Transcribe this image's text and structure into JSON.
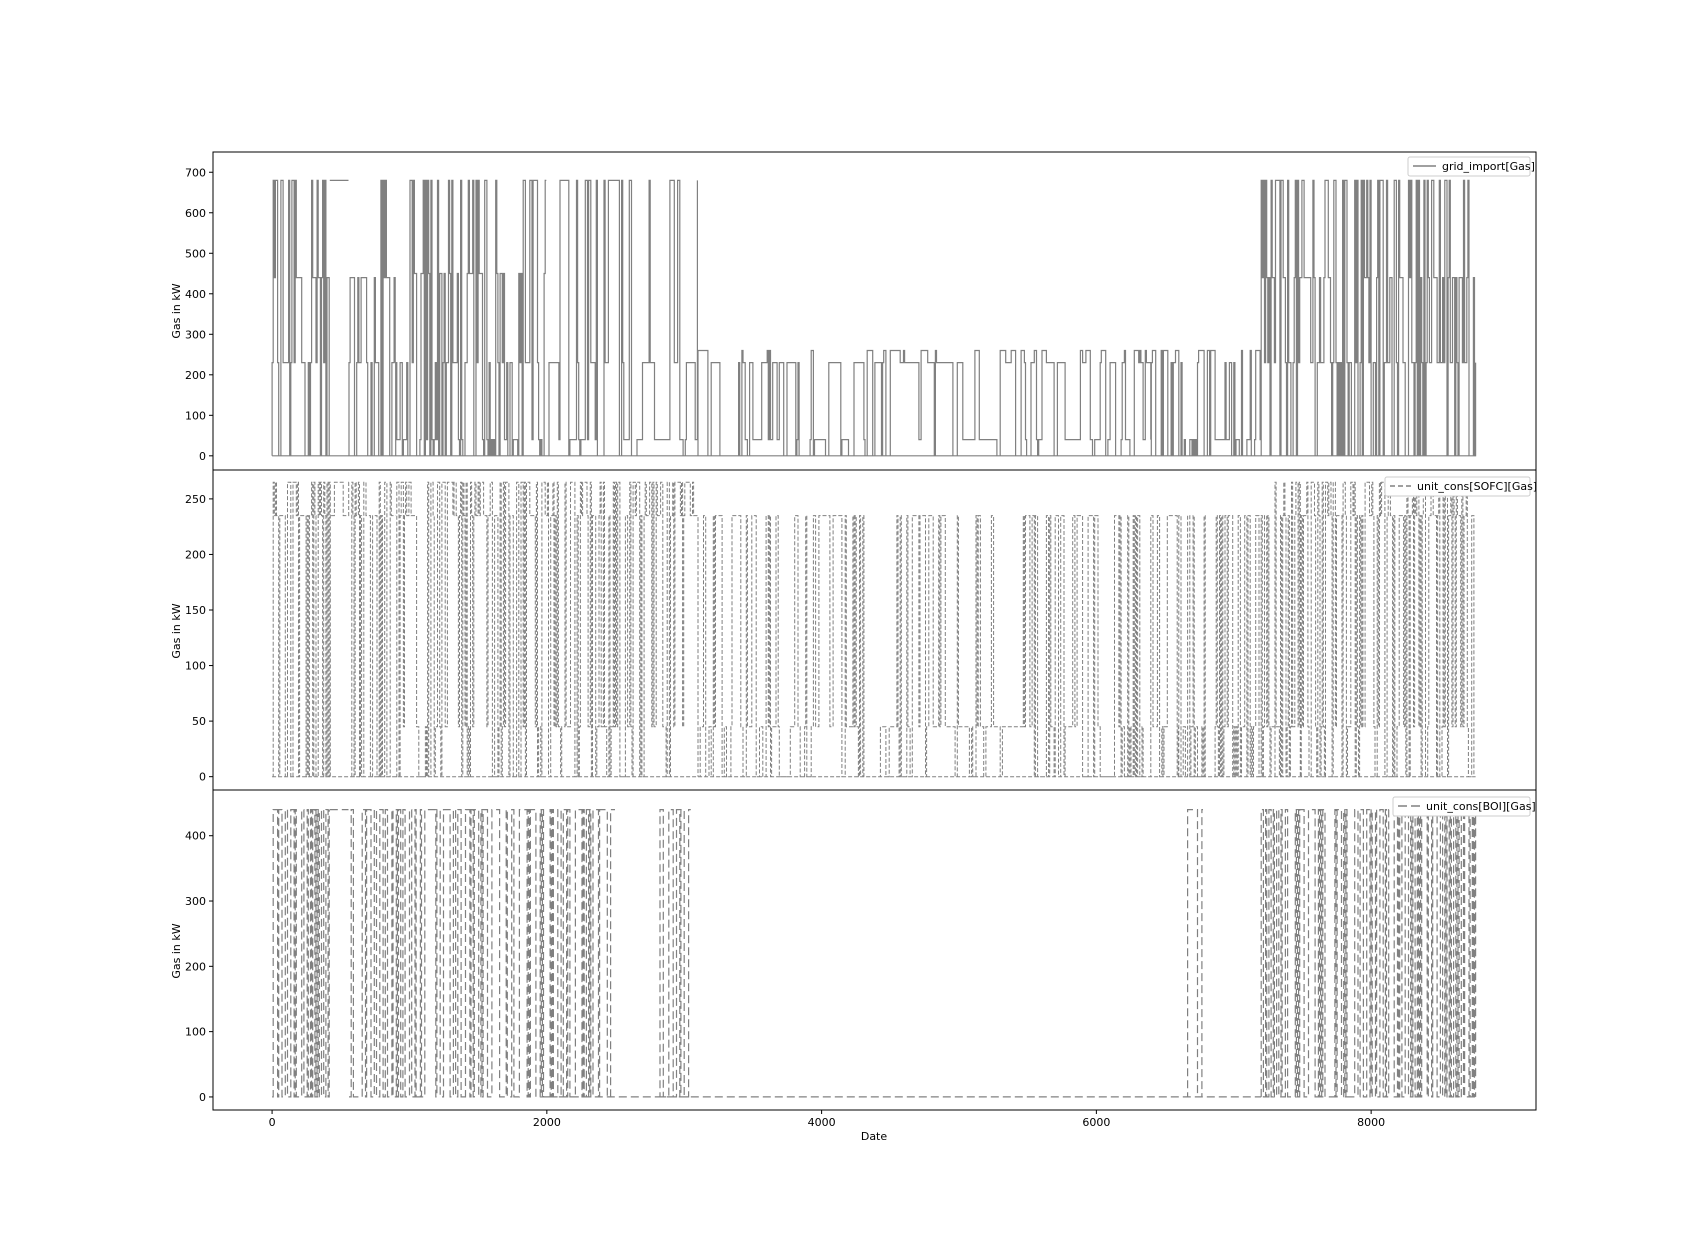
{
  "chart_data": [
    {
      "type": "line",
      "panel": "top",
      "ylabel": "Gas in kW",
      "ylim": [
        -35,
        750
      ],
      "yticks": [
        "0",
        "100",
        "200",
        "300",
        "400",
        "500",
        "600",
        "700"
      ],
      "line_style": "solid",
      "line_color": "#808080",
      "series": [
        {
          "name": "grid_import[Gas]"
        }
      ],
      "legend_position": "top-right",
      "segments": [
        {
          "x": [
            0,
            420
          ],
          "levels": [
            0,
            230,
            440,
            680
          ],
          "density": 0.9
        },
        {
          "x": [
            420,
            560
          ],
          "levels": [
            680,
            710
          ],
          "density": 0.2
        },
        {
          "x": [
            560,
            900
          ],
          "levels": [
            0,
            230,
            440,
            680
          ],
          "density": 0.8
        },
        {
          "x": [
            900,
            2000
          ],
          "levels": [
            0,
            40,
            230,
            450,
            680
          ],
          "density": 0.85
        },
        {
          "x": [
            2000,
            3100
          ],
          "levels": [
            0,
            40,
            230,
            680
          ],
          "density": 0.45
        },
        {
          "x": [
            3100,
            6400
          ],
          "levels": [
            0,
            40,
            230,
            260
          ],
          "density": 0.3
        },
        {
          "x": [
            6400,
            7200
          ],
          "levels": [
            0,
            40,
            230,
            260
          ],
          "density": 0.6
        },
        {
          "x": [
            7200,
            8760
          ],
          "levels": [
            0,
            230,
            440,
            680
          ],
          "density": 0.95
        }
      ]
    },
    {
      "type": "line",
      "panel": "middle",
      "ylabel": "Gas in kW",
      "ylim": [
        -12,
        276
      ],
      "yticks": [
        "0",
        "50",
        "100",
        "150",
        "200",
        "250"
      ],
      "line_style": "dashed",
      "line_color": "#808080",
      "series": [
        {
          "name": "unit_cons[SOFC][Gas]"
        }
      ],
      "legend_position": "top-right",
      "segments": [
        {
          "x": [
            0,
            430
          ],
          "levels": [
            0,
            235,
            265
          ],
          "density": 0.9
        },
        {
          "x": [
            430,
            580
          ],
          "levels": [
            235,
            265
          ],
          "density": 0.1
        },
        {
          "x": [
            580,
            900
          ],
          "levels": [
            0,
            235,
            265
          ],
          "density": 0.85
        },
        {
          "x": [
            900,
            3100
          ],
          "levels": [
            0,
            45,
            235,
            265
          ],
          "density": 0.8
        },
        {
          "x": [
            3100,
            6600
          ],
          "levels": [
            0,
            45,
            235
          ],
          "density": 0.55
        },
        {
          "x": [
            6600,
            7300
          ],
          "levels": [
            0,
            45,
            235
          ],
          "density": 0.8
        },
        {
          "x": [
            7300,
            8760
          ],
          "levels": [
            0,
            45,
            235,
            265
          ],
          "density": 0.95
        }
      ]
    },
    {
      "type": "line",
      "panel": "bottom",
      "ylabel": "Gas in kW",
      "xlabel": "Date",
      "ylim": [
        -20,
        470
      ],
      "yticks": [
        "0",
        "100",
        "200",
        "300",
        "400"
      ],
      "xticks": [
        "0",
        "2000",
        "4000",
        "6000",
        "8000"
      ],
      "xlim": [
        -430,
        9200
      ],
      "line_style": "dashed",
      "line_color": "#808080",
      "series": [
        {
          "name": "unit_cons[BOI][Gas]"
        }
      ],
      "legend_position": "top-right",
      "segments": [
        {
          "x": [
            0,
            420
          ],
          "levels": [
            0,
            440
          ],
          "density": 0.85
        },
        {
          "x": [
            420,
            560
          ],
          "levels": [
            440
          ],
          "density": 0.05
        },
        {
          "x": [
            560,
            1400
          ],
          "levels": [
            0,
            440
          ],
          "density": 0.8
        },
        {
          "x": [
            1400,
            2000
          ],
          "levels": [
            0,
            440
          ],
          "density": 0.85
        },
        {
          "x": [
            2000,
            2500
          ],
          "levels": [
            0,
            440
          ],
          "density": 0.6
        },
        {
          "x": [
            2800,
            3050
          ],
          "levels": [
            0,
            440
          ],
          "density": 0.5
        },
        {
          "x": [
            6640,
            6780
          ],
          "levels": [
            0,
            440
          ],
          "density": 0.2
        },
        {
          "x": [
            7200,
            8760
          ],
          "levels": [
            0,
            440
          ],
          "density": 0.95
        }
      ]
    }
  ]
}
